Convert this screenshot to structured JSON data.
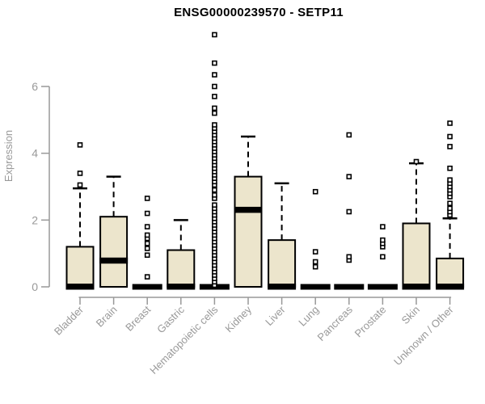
{
  "title": "ENSG00000239570 - SETP11",
  "chart_data": {
    "type": "boxplot",
    "title": "ENSG00000239570 - SETP11",
    "xlabel": "",
    "ylabel": "Expression",
    "yticks": [
      0,
      2,
      4,
      6
    ],
    "ylim": [
      0,
      6
    ],
    "grid": false,
    "legend": "none",
    "box_fill_color": "#ece5cc",
    "box_stroke_color": "#000000",
    "axis_color": "#999999",
    "categories": [
      "Bladder",
      "Brain",
      "Breast",
      "Gastric",
      "Hematopoietic cells",
      "Kidney",
      "Liver",
      "Lung",
      "Pancreas",
      "Prostate",
      "Skin",
      "Unknown / Other"
    ],
    "series": [
      {
        "category": "Bladder",
        "q1": 0,
        "median": 0,
        "q3": 1.2,
        "whisker_low": 0,
        "whisker_high": 2.95,
        "outliers": [
          3.05,
          3.4,
          4.25
        ]
      },
      {
        "category": "Brain",
        "q1": 0,
        "median": 0.78,
        "q3": 2.1,
        "whisker_low": 0,
        "whisker_high": 3.3,
        "outliers": []
      },
      {
        "category": "Breast",
        "q1": 0,
        "median": 0,
        "q3": 0,
        "whisker_low": 0,
        "whisker_high": 0,
        "outliers": [
          0.3,
          0.95,
          1.15,
          1.3,
          1.45,
          1.55,
          1.8,
          2.2,
          2.65
        ]
      },
      {
        "category": "Gastric",
        "q1": 0,
        "median": 0,
        "q3": 1.1,
        "whisker_low": 0,
        "whisker_high": 2.0,
        "outliers": []
      },
      {
        "category": "Hematopoietic cells",
        "q1": 0,
        "median": 0,
        "q3": 0,
        "whisker_low": 0,
        "whisker_high": 0,
        "outliers": [
          0.05,
          0.15,
          0.25,
          0.35,
          0.45,
          0.55,
          0.65,
          0.75,
          0.85,
          0.95,
          1.05,
          1.15,
          1.25,
          1.35,
          1.45,
          1.55,
          1.65,
          1.75,
          1.85,
          1.95,
          2.05,
          2.15,
          2.25,
          2.35,
          2.45,
          2.65,
          2.75,
          2.9,
          3.05,
          3.15,
          3.25,
          3.35,
          3.45,
          3.55,
          3.65,
          3.75,
          3.85,
          3.95,
          4.05,
          4.15,
          4.25,
          4.35,
          4.45,
          4.55,
          4.65,
          4.75,
          4.85,
          5.2,
          5.35,
          5.7,
          6.0,
          6.35,
          6.7,
          7.55
        ]
      },
      {
        "category": "Kidney",
        "q1": 0,
        "median": 2.3,
        "q3": 3.3,
        "whisker_low": 0,
        "whisker_high": 4.5,
        "outliers": []
      },
      {
        "category": "Liver",
        "q1": 0,
        "median": 0,
        "q3": 1.4,
        "whisker_low": 0,
        "whisker_high": 3.1,
        "outliers": []
      },
      {
        "category": "Lung",
        "q1": 0,
        "median": 0,
        "q3": 0,
        "whisker_low": 0,
        "whisker_high": 0,
        "outliers": [
          0.6,
          0.75,
          1.05,
          2.85
        ]
      },
      {
        "category": "Pancreas",
        "q1": 0,
        "median": 0,
        "q3": 0,
        "whisker_low": 0,
        "whisker_high": 0,
        "outliers": [
          0.8,
          0.9,
          2.25,
          3.3,
          4.55
        ]
      },
      {
        "category": "Prostate",
        "q1": 0,
        "median": 0,
        "q3": 0,
        "whisker_low": 0,
        "whisker_high": 0,
        "outliers": [
          0.9,
          1.2,
          1.3,
          1.4,
          1.8
        ]
      },
      {
        "category": "Skin",
        "q1": 0,
        "median": 0,
        "q3": 1.9,
        "whisker_low": 0,
        "whisker_high": 3.7,
        "outliers": [
          3.75
        ]
      },
      {
        "category": "Unknown / Other",
        "q1": 0,
        "median": 0,
        "q3": 0.85,
        "whisker_low": 0,
        "whisker_high": 2.05,
        "outliers": [
          2.15,
          2.25,
          2.35,
          2.5,
          2.7,
          2.8,
          2.9,
          3.0,
          3.1,
          3.2,
          3.55,
          4.2,
          4.5,
          4.9
        ]
      }
    ]
  }
}
